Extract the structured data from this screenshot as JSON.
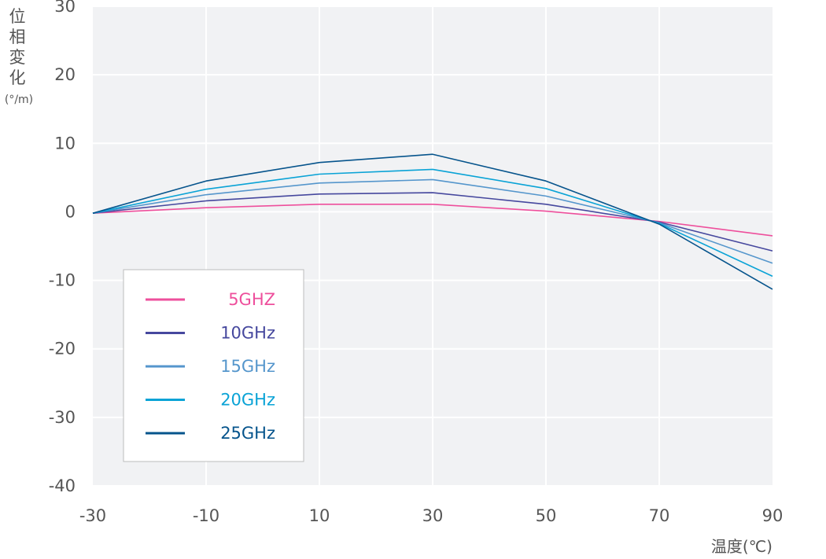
{
  "chart_data": {
    "type": "line",
    "x": [
      -30,
      -10,
      10,
      30,
      50,
      70,
      90
    ],
    "xlabel": "温度(℃)",
    "ylabel_chars": [
      "位",
      "相",
      "変",
      "化"
    ],
    "ylabel_unit": "(°/m)",
    "xlim": [
      -30,
      90
    ],
    "ylim": [
      -40,
      30
    ],
    "xticks": [
      "-30",
      "-10",
      "10",
      "30",
      "50",
      "70",
      "90"
    ],
    "yticks": [
      "30",
      "20",
      "10",
      "0",
      "-10",
      "-20",
      "-30",
      "-40"
    ],
    "grid": true,
    "legend_position": "lower-left",
    "series": [
      {
        "name": "5GHZ",
        "color": "#ee4f9c",
        "values": [
          -0.2,
          0.6,
          1.1,
          1.1,
          0.1,
          -1.4,
          -3.5
        ]
      },
      {
        "name": "10GHz",
        "color": "#46489e",
        "values": [
          -0.2,
          1.6,
          2.6,
          2.8,
          1.1,
          -1.5,
          -5.7
        ]
      },
      {
        "name": "15GHz",
        "color": "#5596cc",
        "values": [
          -0.2,
          2.5,
          4.2,
          4.7,
          2.3,
          -1.6,
          -7.5
        ]
      },
      {
        "name": "20GHz",
        "color": "#0aa3d6",
        "values": [
          -0.2,
          3.3,
          5.5,
          6.2,
          3.4,
          -1.7,
          -9.4
        ]
      },
      {
        "name": "25GHz",
        "color": "#06548c",
        "values": [
          -0.2,
          4.5,
          7.2,
          8.4,
          4.5,
          -1.8,
          -11.3
        ]
      }
    ]
  }
}
